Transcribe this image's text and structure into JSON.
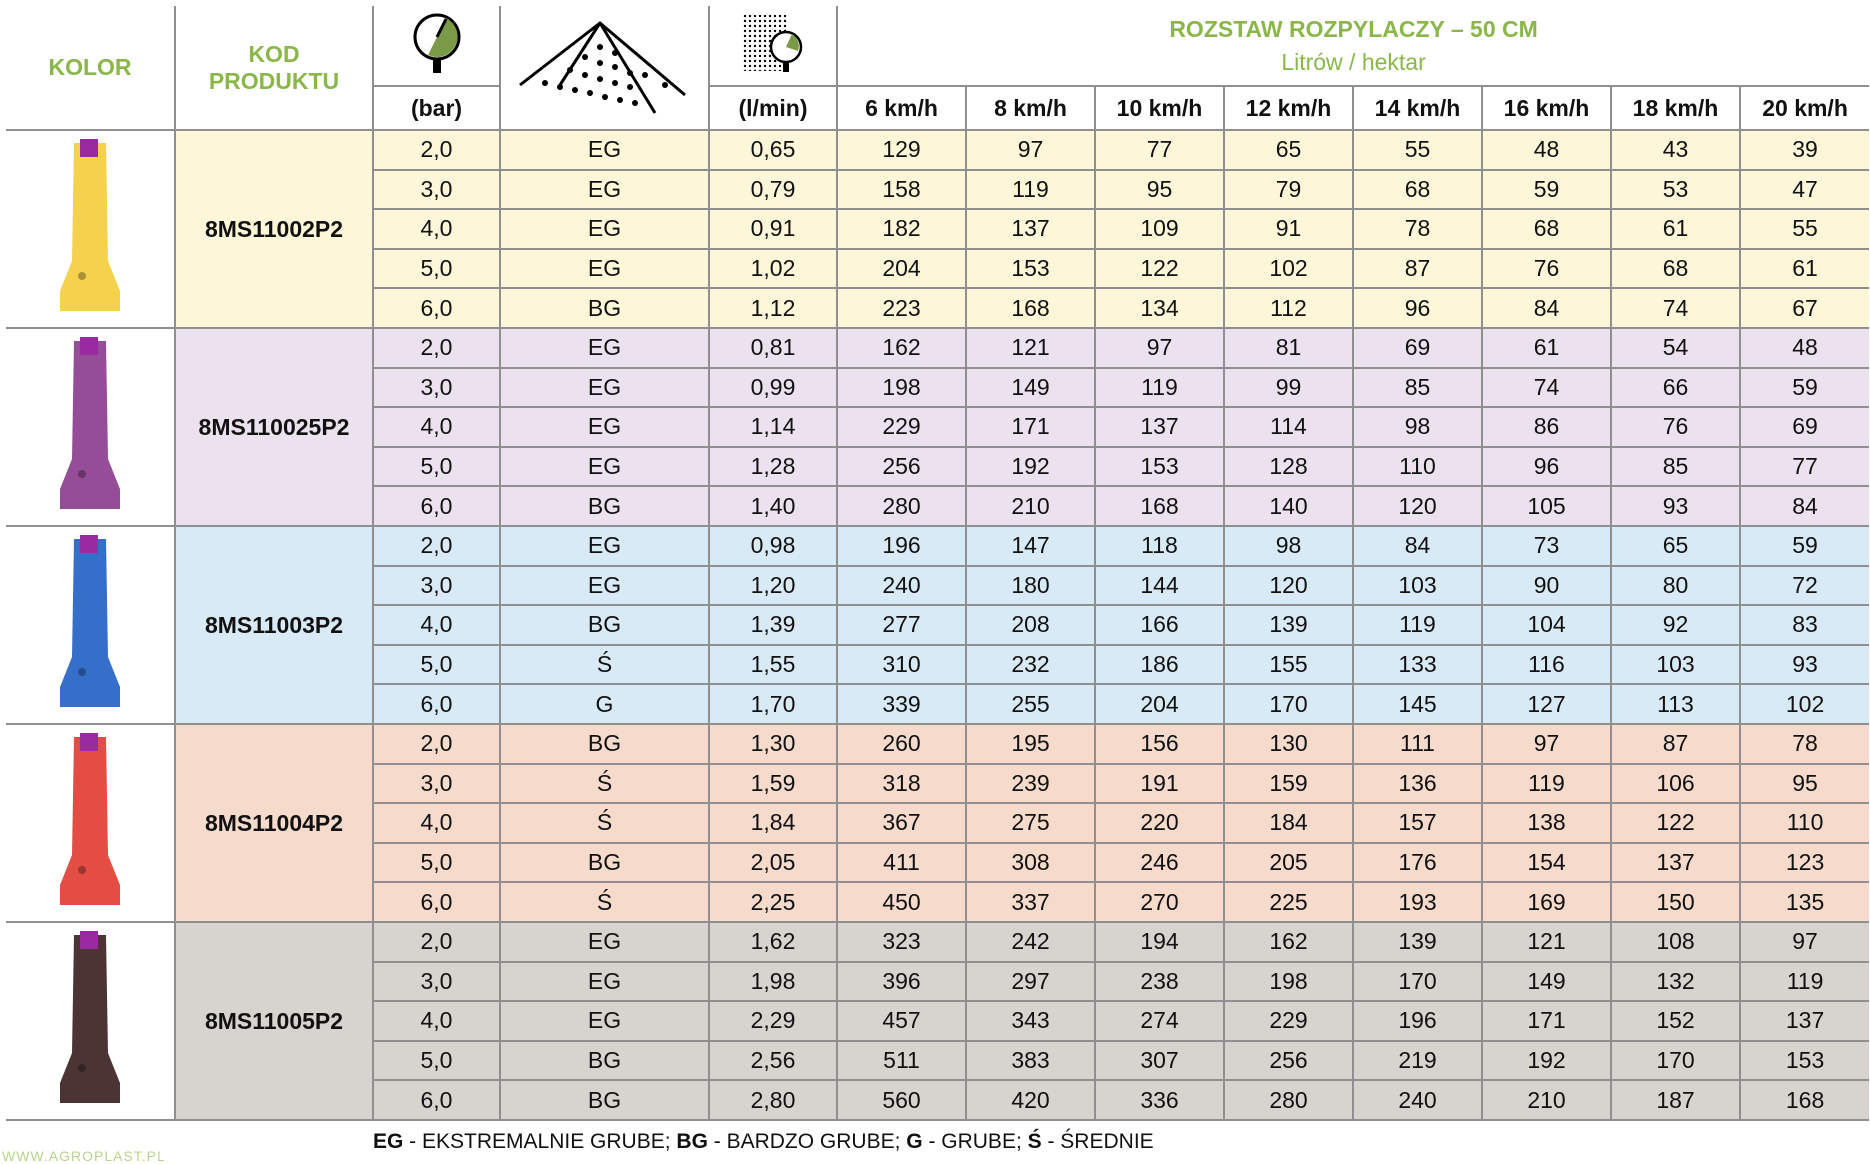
{
  "header": {
    "kolor": "KOLOR",
    "kod_line1": "KOD",
    "kod_line2": "PRODUKTU",
    "pressure_unit": "(bar)",
    "flow_unit": "(l/min)",
    "title": "ROZSTAW ROZPYLACZY – 50 CM",
    "subtitle": "Litrów / hektar",
    "icons": [
      "pressure-gauge-icon",
      "spray-droplet-icon",
      "flow-gauge-icon"
    ],
    "speeds": [
      "6 km/h",
      "8 km/h",
      "10 km/h",
      "12 km/h",
      "14 km/h",
      "16 km/h",
      "18 km/h",
      "20 km/h"
    ]
  },
  "colors": {
    "header_green": "#8ab64a"
  },
  "products": [
    {
      "code": "8MS11002P2",
      "color": "#f3cd3a",
      "bg": "#fdf6d9",
      "rows": [
        [
          "2,0",
          "EG",
          "0,65",
          "129",
          "97",
          "77",
          "65",
          "55",
          "48",
          "43",
          "39"
        ],
        [
          "3,0",
          "EG",
          "0,79",
          "158",
          "119",
          "95",
          "79",
          "68",
          "59",
          "53",
          "47"
        ],
        [
          "4,0",
          "EG",
          "0,91",
          "182",
          "137",
          "109",
          "91",
          "78",
          "68",
          "61",
          "55"
        ],
        [
          "5,0",
          "EG",
          "1,02",
          "204",
          "153",
          "122",
          "102",
          "87",
          "76",
          "68",
          "61"
        ],
        [
          "6,0",
          "BG",
          "1,12",
          "223",
          "168",
          "134",
          "112",
          "96",
          "84",
          "74",
          "67"
        ]
      ]
    },
    {
      "code": "8MS110025P2",
      "color": "#8a3a8c",
      "bg": "#ece1ef",
      "rows": [
        [
          "2,0",
          "EG",
          "0,81",
          "162",
          "121",
          "97",
          "81",
          "69",
          "61",
          "54",
          "48"
        ],
        [
          "3,0",
          "EG",
          "0,99",
          "198",
          "149",
          "119",
          "99",
          "85",
          "74",
          "66",
          "59"
        ],
        [
          "4,0",
          "EG",
          "1,14",
          "229",
          "171",
          "137",
          "114",
          "98",
          "86",
          "76",
          "69"
        ],
        [
          "5,0",
          "EG",
          "1,28",
          "256",
          "192",
          "153",
          "128",
          "110",
          "96",
          "85",
          "77"
        ],
        [
          "6,0",
          "BG",
          "1,40",
          "280",
          "210",
          "168",
          "140",
          "120",
          "105",
          "93",
          "84"
        ]
      ]
    },
    {
      "code": "8MS11003P2",
      "color": "#1f5fc4",
      "bg": "#d9eaf7",
      "rows": [
        [
          "2,0",
          "EG",
          "0,98",
          "196",
          "147",
          "118",
          "98",
          "84",
          "73",
          "65",
          "59"
        ],
        [
          "3,0",
          "EG",
          "1,20",
          "240",
          "180",
          "144",
          "120",
          "103",
          "90",
          "80",
          "72"
        ],
        [
          "4,0",
          "BG",
          "1,39",
          "277",
          "208",
          "166",
          "139",
          "119",
          "104",
          "92",
          "83"
        ],
        [
          "5,0",
          "Ś",
          "1,55",
          "310",
          "232",
          "186",
          "155",
          "133",
          "116",
          "103",
          "93"
        ],
        [
          "6,0",
          "G",
          "1,70",
          "339",
          "255",
          "204",
          "170",
          "145",
          "127",
          "113",
          "102"
        ]
      ]
    },
    {
      "code": "8MS11004P2",
      "color": "#e03a30",
      "bg": "#f6dacc",
      "rows": [
        [
          "2,0",
          "BG",
          "1,30",
          "260",
          "195",
          "156",
          "130",
          "111",
          "97",
          "87",
          "78"
        ],
        [
          "3,0",
          "Ś",
          "1,59",
          "318",
          "239",
          "191",
          "159",
          "136",
          "119",
          "106",
          "95"
        ],
        [
          "4,0",
          "Ś",
          "1,84",
          "367",
          "275",
          "220",
          "184",
          "157",
          "138",
          "122",
          "110"
        ],
        [
          "5,0",
          "BG",
          "2,05",
          "411",
          "308",
          "246",
          "205",
          "176",
          "154",
          "137",
          "123"
        ],
        [
          "6,0",
          "Ś",
          "2,25",
          "450",
          "337",
          "270",
          "225",
          "193",
          "169",
          "150",
          "135"
        ]
      ]
    },
    {
      "code": "8MS11005P2",
      "color": "#3a1e1e",
      "bg": "#d7d4cf",
      "rows": [
        [
          "2,0",
          "EG",
          "1,62",
          "323",
          "242",
          "194",
          "162",
          "139",
          "121",
          "108",
          "97"
        ],
        [
          "3,0",
          "EG",
          "1,98",
          "396",
          "297",
          "238",
          "198",
          "170",
          "149",
          "132",
          "119"
        ],
        [
          "4,0",
          "EG",
          "2,29",
          "457",
          "343",
          "274",
          "229",
          "196",
          "171",
          "152",
          "137"
        ],
        [
          "5,0",
          "BG",
          "2,56",
          "511",
          "383",
          "307",
          "256",
          "219",
          "192",
          "170",
          "153"
        ],
        [
          "6,0",
          "BG",
          "2,80",
          "560",
          "420",
          "336",
          "280",
          "240",
          "210",
          "187",
          "168"
        ]
      ]
    }
  ],
  "legend": [
    {
      "abbr": "EG",
      "text": " - EKSTREMALNIE GRUBE; "
    },
    {
      "abbr": "BG",
      "text": " - BARDZO GRUBE; "
    },
    {
      "abbr": "G",
      "text": " - GRUBE; "
    },
    {
      "abbr": "Ś",
      "text": " - ŚREDNIE"
    }
  ],
  "footer": {
    "site": "WWW.AGROPLAST.PL"
  }
}
